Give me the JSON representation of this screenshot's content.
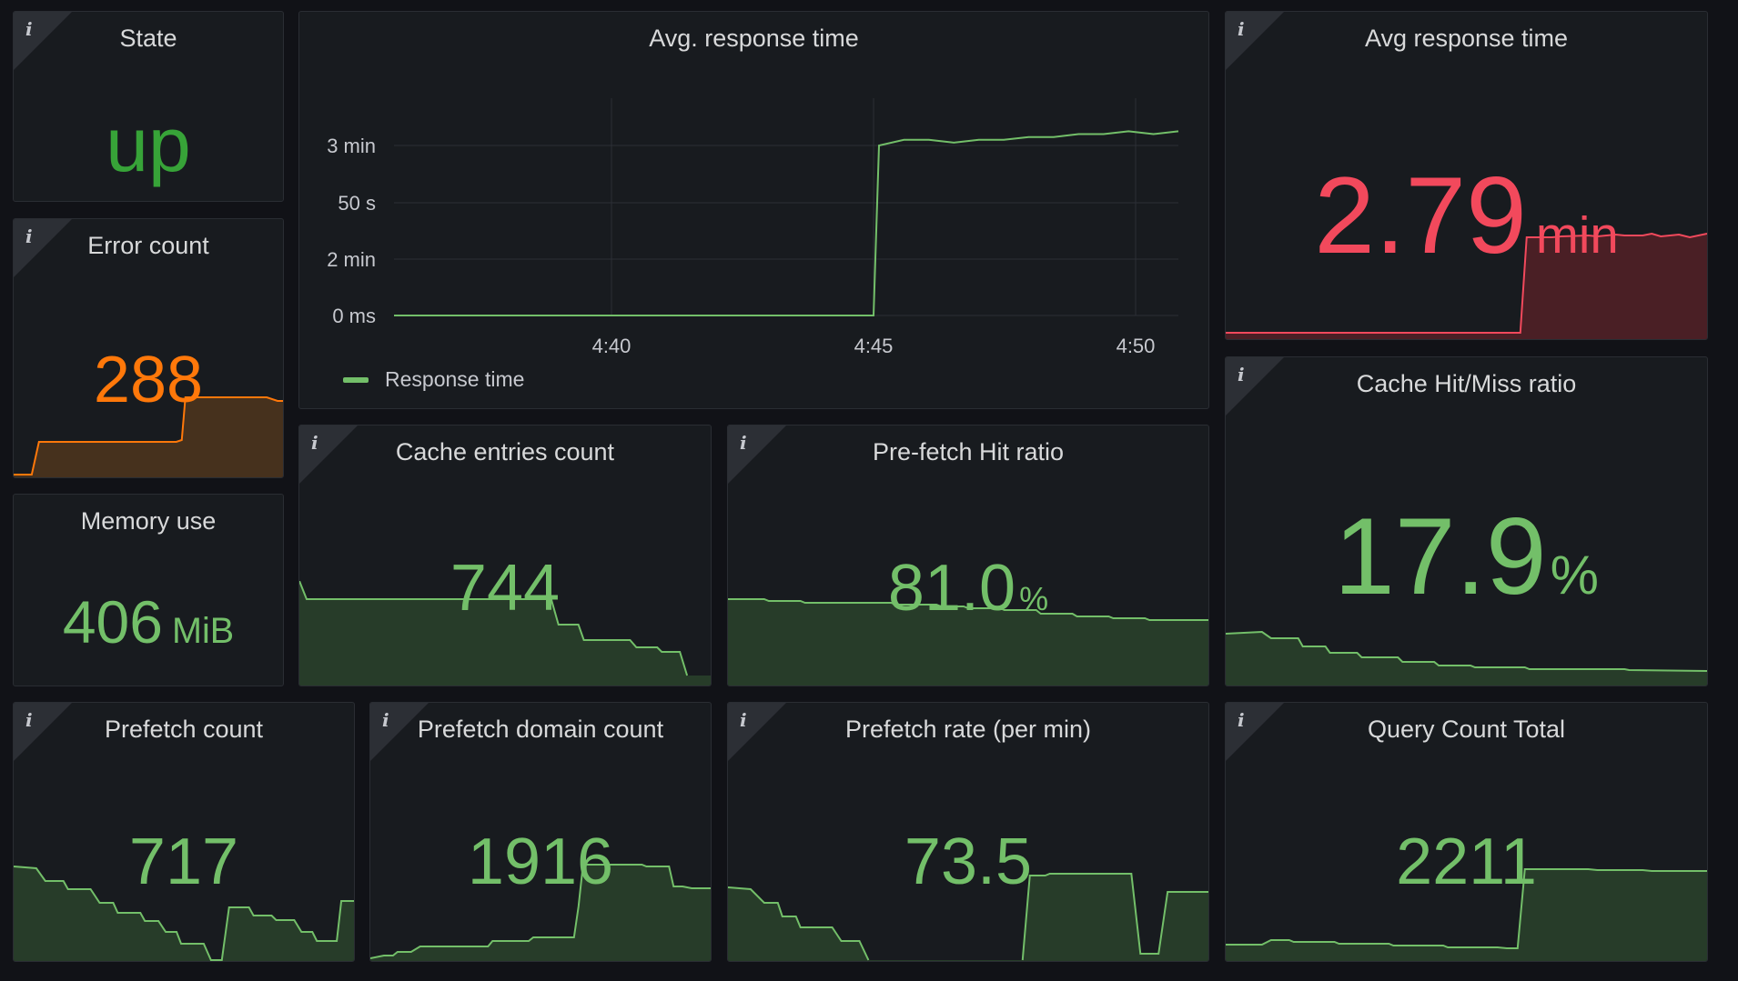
{
  "colors": {
    "green": "#73bf69",
    "green_strong": "#37872d",
    "orange": "#ff780a",
    "red": "#f2495c",
    "panel_bg": "#181b1f",
    "page_bg": "#111217"
  },
  "panels": {
    "state": {
      "title": "State",
      "value": "up"
    },
    "error_count": {
      "title": "Error count",
      "value": "288"
    },
    "memory_use": {
      "title": "Memory use",
      "value": "406",
      "unit": "MiB"
    },
    "avg_response_time_chart": {
      "title": "Avg. response time",
      "legend": "Response time"
    },
    "avg_response_time": {
      "title": "Avg response time",
      "value": "2.79",
      "unit": "min"
    },
    "cache_entries_count": {
      "title": "Cache entries count",
      "value": "744"
    },
    "prefetch_hit_ratio": {
      "title": "Pre-fetch Hit ratio",
      "value": "81.0",
      "unit": "%"
    },
    "cache_hit_miss_ratio": {
      "title": "Cache Hit/Miss ratio",
      "value": "17.9",
      "unit": "%"
    },
    "prefetch_count": {
      "title": "Prefetch count",
      "value": "717"
    },
    "prefetch_domain_count": {
      "title": "Prefetch domain count",
      "value": "1916"
    },
    "prefetch_rate": {
      "title": "Prefetch rate (per min)",
      "value": "73.5"
    },
    "query_count_total": {
      "title": "Query Count Total",
      "value": "2211"
    }
  },
  "chart_data": {
    "type": "line",
    "title": "Avg. response time",
    "x_ticks": [
      "4:40",
      "4:45",
      "4:50"
    ],
    "y_ticks": [
      "0 ms",
      "2 min",
      "50 s",
      "3 min"
    ],
    "series": [
      {
        "name": "Response time",
        "x": [
          "4:36",
          "4:37",
          "4:38",
          "4:39",
          "4:40",
          "4:41",
          "4:42",
          "4:43",
          "4:44",
          "4:45",
          "4:45.2",
          "4:45.5",
          "4:46",
          "4:46.5",
          "4:47",
          "4:47.5",
          "4:48",
          "4:48.5",
          "4:49",
          "4:49.5",
          "4:50",
          "4:50.5",
          "4:50.8"
        ],
        "values": [
          0,
          0,
          0,
          0,
          0,
          0,
          0,
          0,
          0,
          0,
          3.0,
          3.1,
          3.1,
          3.05,
          3.1,
          3.1,
          3.15,
          3.15,
          3.2,
          3.2,
          3.25,
          3.2,
          3.25
        ]
      }
    ]
  }
}
